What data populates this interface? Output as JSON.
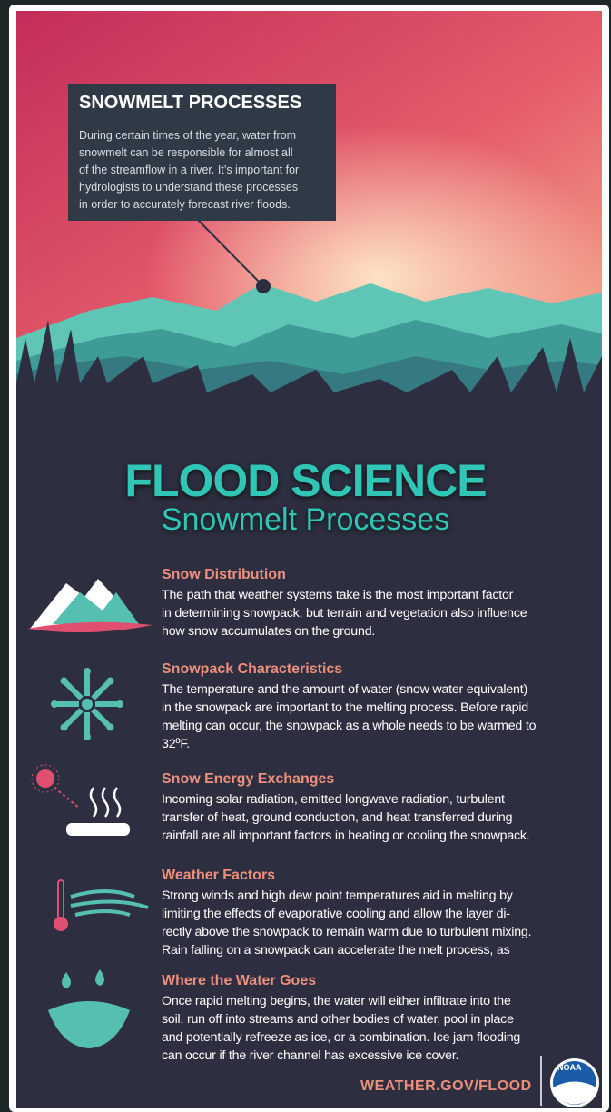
{
  "callout": {
    "title": "SNOWMELT PROCESSES",
    "lines": [
      "During certain times of the year, water from",
      "snowmelt can be responsible for almost all",
      "of the streamflow in a river. It’s important for",
      "hydrologists to understand these processes",
      "in order to accurately forecast river floods."
    ]
  },
  "header": {
    "title": "FLOOD SCIENCE",
    "subtitle": "Snowmelt Processes"
  },
  "sections": [
    {
      "heading": "Snow Distribution",
      "lines": [
        "The path that weather systems take is the most important factor",
        "in determining snowpack, but terrain and vegetation also influence",
        "how snow accumulates on the ground."
      ]
    },
    {
      "heading": "Snowpack Characteristics",
      "lines": [
        "The temperature and the amount of water (snow water equivalent)",
        "in the snowpack are important to the melting process. Before rapid",
        "melting can occur, the snowpack as a whole needs to be warmed to",
        "32ºF."
      ]
    },
    {
      "heading": "Snow Energy Exchanges",
      "lines": [
        "Incoming solar radiation, emitted longwave radiation, turbulent",
        "transfer of heat, ground conduction, and heat transferred during",
        "rainfall are all important factors in heating or cooling the snowpack."
      ]
    },
    {
      "heading": "Weather Factors",
      "lines": [
        "Strong winds and high dew point temperatures aid in melting by",
        "limiting the effects of evaporative cooling and allow the layer di-",
        "rectly above the snowpack to remain warm due to turbulent mixing.",
        "Rain falling on a snowpack can accelerate the melt process, as"
      ]
    },
    {
      "heading": "Where the Water Goes",
      "lines": [
        "Once rapid melting begins, the water will either infiltrate into the",
        "soil, run off into streams and other bodies of water, pool in place",
        "and potentially refreeze as ice, or a combination. Ice jam flooding",
        "can occur if the river channel has excessive ice cover."
      ]
    }
  ],
  "footer": {
    "url": "WEATHER.GOV/FLOOD",
    "logo": "NOAA"
  }
}
